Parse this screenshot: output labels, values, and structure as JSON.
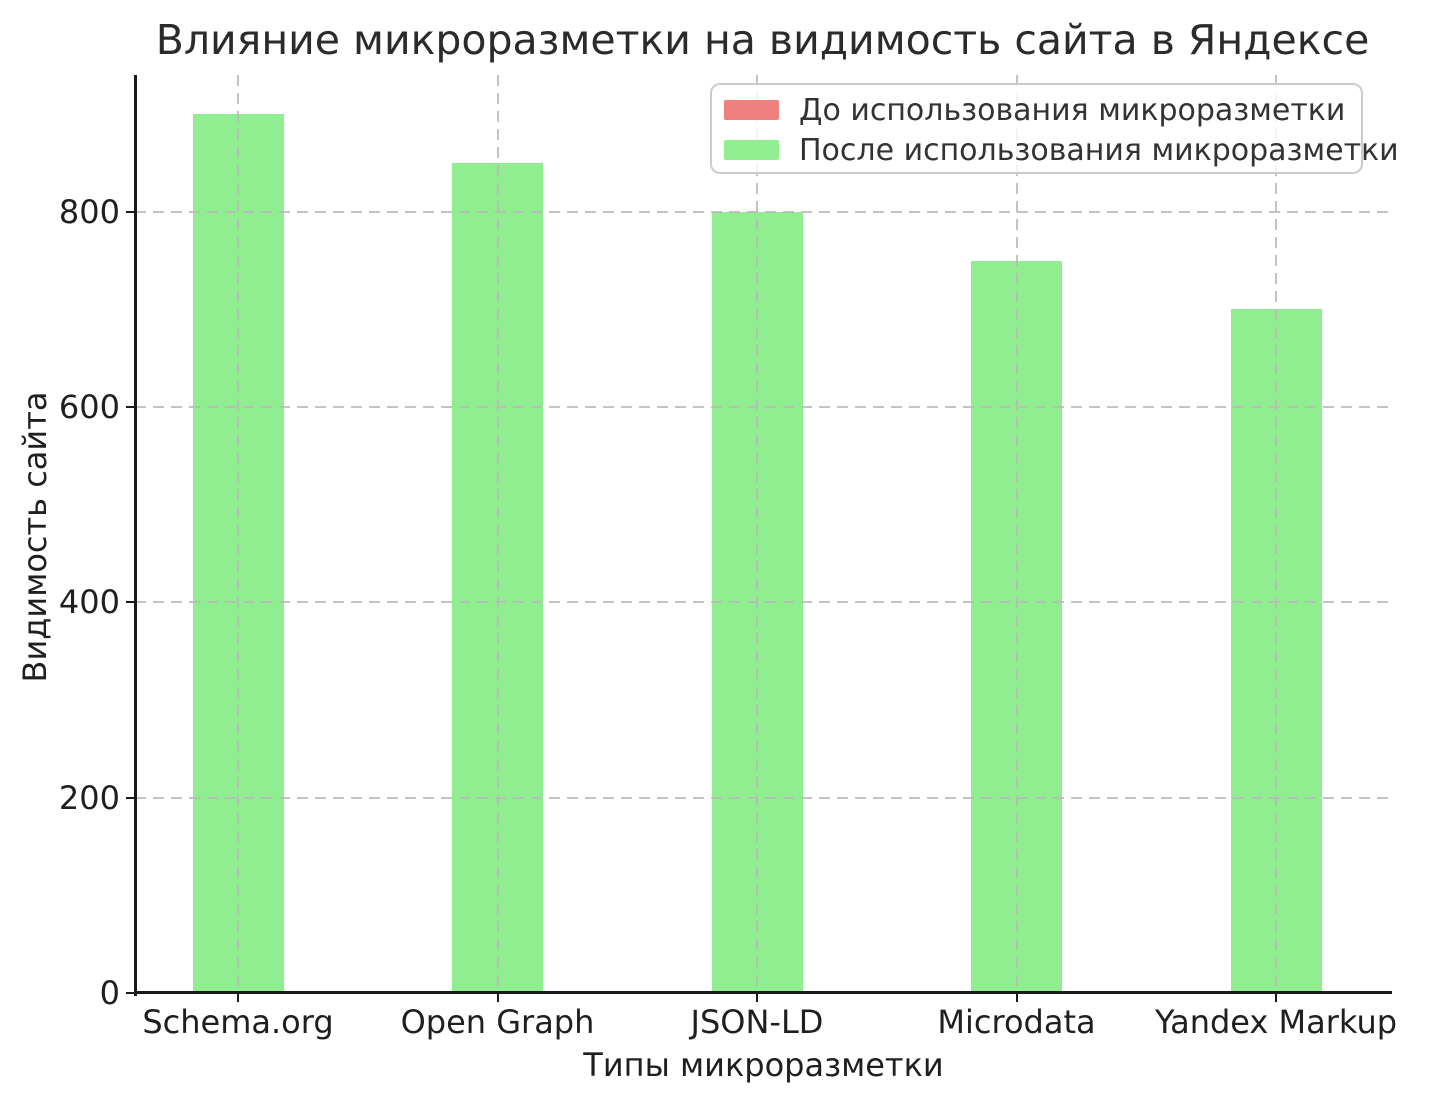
{
  "chart_data": {
    "type": "bar",
    "title": "Влияние микроразметки на видимость сайта в Яндексе",
    "xlabel": "Типы микроразметки",
    "ylabel": "Видимость сайта",
    "categories": [
      "Schema.org",
      "Open Graph",
      "JSON-LD",
      "Microdata",
      "Yandex Markup"
    ],
    "series": [
      {
        "name": "До использования микроразметки",
        "color": "#F08080",
        "values": null,
        "note": "bars not visible in the image (hidden behind the green series)"
      },
      {
        "name": "После использования микроразметки",
        "color": "#90EE90",
        "values": [
          900,
          850,
          800,
          750,
          700
        ]
      }
    ],
    "yticks": [
      0,
      200,
      400,
      600,
      800
    ],
    "ylim": [
      0,
      940
    ],
    "grid": true,
    "grid_style": "dashed",
    "legend_position": "upper right",
    "background_color": "#ffffff"
  }
}
